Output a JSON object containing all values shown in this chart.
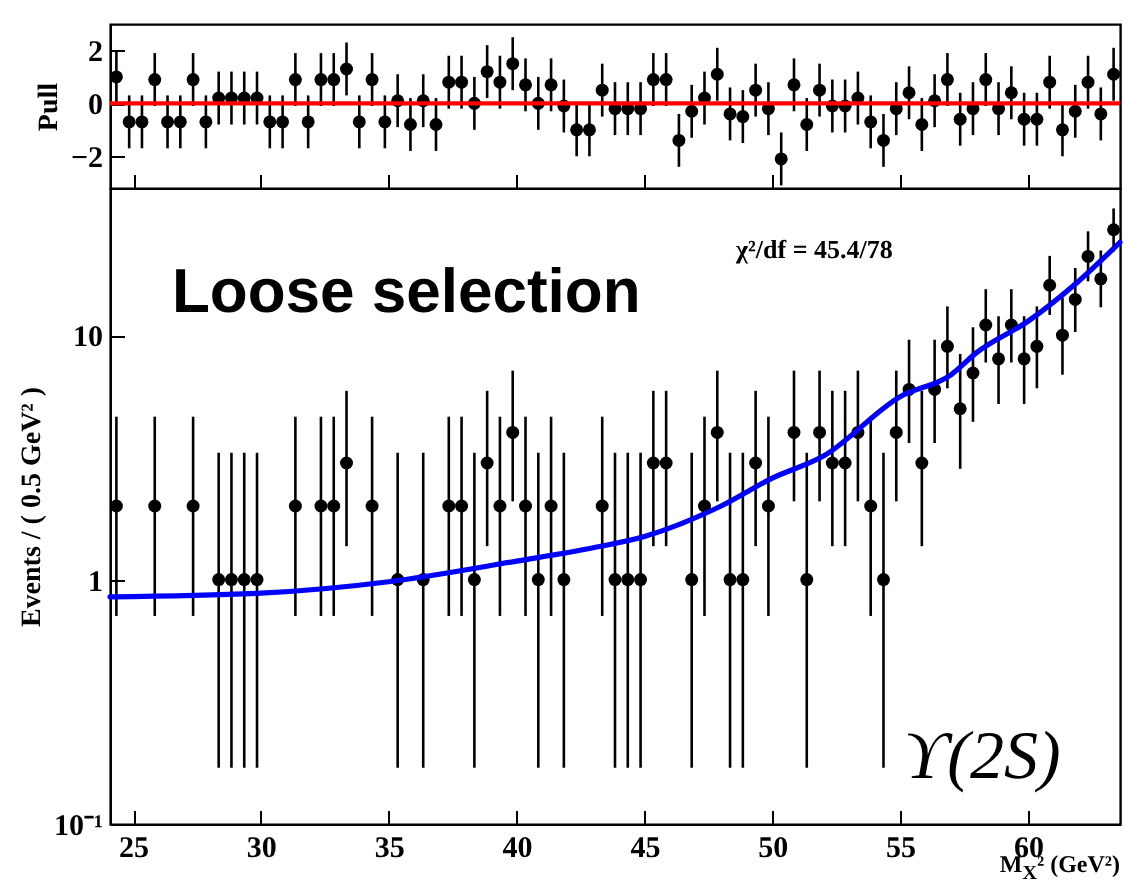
{
  "chart_data": [
    {
      "type": "scatter",
      "ylabel": "Pull",
      "marker": "circle",
      "tick_labels": "y",
      "xlim": [
        24.1,
        63.6
      ],
      "xticks": [
        25,
        30,
        35,
        40,
        45,
        50,
        55,
        60
      ],
      "ylim": [
        -3.2,
        3
      ],
      "yticks": [
        -2,
        0,
        2
      ],
      "ref_lines": [
        {
          "axis": "y",
          "value": 0,
          "color": "#ff0000"
        }
      ],
      "x": [
        24.35,
        24.85,
        25.35,
        25.85,
        26.35,
        26.85,
        27.35,
        27.85,
        28.35,
        28.85,
        29.35,
        29.85,
        30.35,
        30.85,
        31.35,
        31.85,
        32.35,
        32.85,
        33.35,
        33.85,
        34.35,
        34.85,
        35.35,
        35.85,
        36.35,
        36.85,
        37.35,
        37.85,
        38.35,
        38.85,
        39.35,
        39.85,
        40.35,
        40.85,
        41.35,
        41.85,
        42.35,
        42.85,
        43.35,
        43.85,
        44.35,
        44.85,
        45.35,
        45.85,
        46.35,
        46.85,
        47.35,
        47.85,
        48.35,
        48.85,
        49.35,
        49.85,
        50.35,
        50.85,
        51.35,
        51.85,
        52.35,
        52.85,
        53.35,
        53.85,
        54.35,
        54.85,
        55.35,
        55.85,
        56.35,
        56.85,
        57.35,
        57.85,
        58.35,
        58.85,
        59.35,
        59.85,
        60.35,
        60.85,
        61.35,
        61.85,
        62.35,
        62.85,
        63.35
      ],
      "series": [
        {
          "color": "#000000",
          "values": [
            1.0,
            -0.7,
            -0.7,
            0.9,
            -0.7,
            -0.7,
            0.9,
            -0.7,
            0.2,
            0.2,
            0.2,
            0.2,
            -0.7,
            -0.7,
            0.9,
            -0.7,
            0.9,
            0.9,
            1.3,
            -0.7,
            0.9,
            -0.7,
            0.1,
            -0.8,
            0.1,
            -0.8,
            0.8,
            0.8,
            0.0,
            1.2,
            0.8,
            1.5,
            0.7,
            0.0,
            0.7,
            -0.1,
            -1.0,
            -1.0,
            0.5,
            -0.2,
            -0.2,
            -0.2,
            0.9,
            0.9,
            -1.4,
            -0.3,
            0.2,
            1.1,
            -0.4,
            -0.5,
            0.5,
            -0.2,
            -2.1,
            0.7,
            -0.8,
            0.5,
            -0.1,
            -0.1,
            0.2,
            -0.7,
            -1.4,
            -0.2,
            0.4,
            -0.8,
            0.1,
            0.9,
            -0.6,
            -0.2,
            0.9,
            -0.2,
            0.4,
            -0.6,
            -0.6,
            0.8,
            -1.0,
            -0.3,
            0.8,
            -0.4,
            1.1
          ],
          "errors": [
            1,
            1,
            1,
            1,
            1,
            1,
            1,
            1,
            1,
            1,
            1,
            1,
            1,
            1,
            1,
            1,
            1,
            1,
            1,
            1,
            1,
            1,
            1,
            1,
            1,
            1,
            1,
            1,
            1,
            1,
            1,
            1,
            1,
            1,
            1,
            1,
            1,
            1,
            1,
            1,
            1,
            1,
            1,
            1,
            1,
            1,
            1,
            1,
            1,
            1,
            1,
            1,
            1,
            1,
            1,
            1,
            1,
            1,
            1,
            1,
            1,
            1,
            1,
            1,
            1,
            1,
            1,
            1,
            1,
            1,
            1,
            1,
            1,
            1,
            1,
            1,
            1,
            1,
            1
          ]
        }
      ]
    },
    {
      "type": "scatter",
      "ylabel": "Events / ( 0.5 GeV² )",
      "xlabel": "M$_{X}$² (GeV²)",
      "log": true,
      "xlim": [
        24.1,
        63.6
      ],
      "xticks": [
        25,
        30,
        35,
        40,
        45,
        50,
        55,
        60
      ],
      "ylim": [
        0.1,
        40
      ],
      "yticks": [
        {
          "value": 0.1,
          "label": "10⁻¹"
        },
        1,
        10
      ],
      "annotations": [
        "Loose selection",
        "χ²/df = 45.4/78",
        "ϒ(2S)"
      ],
      "series": [
        {
          "type": "scatter",
          "marker": "circle",
          "color": "#000000",
          "x": [
            24.35,
            25.85,
            27.35,
            28.35,
            28.85,
            29.35,
            29.85,
            31.35,
            32.35,
            32.85,
            33.35,
            34.35,
            35.35,
            36.35,
            37.35,
            37.85,
            38.35,
            38.85,
            39.35,
            39.85,
            40.35,
            40.85,
            41.35,
            41.85,
            43.35,
            43.85,
            44.35,
            44.85,
            45.35,
            45.85,
            46.85,
            47.35,
            47.85,
            48.35,
            48.85,
            49.35,
            49.85,
            50.85,
            51.35,
            51.85,
            52.35,
            52.85,
            53.35,
            53.85,
            54.35,
            54.85,
            55.35,
            55.85,
            56.35,
            56.85,
            57.35,
            57.85,
            58.35,
            58.85,
            59.35,
            59.85,
            60.35,
            60.85,
            61.35,
            61.85,
            62.35,
            62.85,
            63.35
          ],
          "values": [
            2,
            2,
            2,
            1,
            1,
            1,
            1,
            2,
            2,
            2,
            3,
            2,
            1,
            1,
            2,
            2,
            1,
            3,
            2,
            4,
            2,
            1,
            2,
            1,
            2,
            1,
            1,
            1,
            3,
            3,
            1,
            2,
            4,
            1,
            1,
            3,
            2,
            4,
            1,
            4,
            3,
            3,
            4,
            2,
            1,
            4,
            6,
            3,
            6,
            9,
            5,
            7,
            11,
            8,
            11,
            8,
            9,
            16,
            10,
            14,
            21,
            17,
            27
          ],
          "errors": [
            [
              0.71,
              4.64
            ],
            [
              0.71,
              4.64
            ],
            [
              0.71,
              4.64
            ],
            [
              0.17,
              3.3
            ],
            [
              0.17,
              3.3
            ],
            [
              0.17,
              3.3
            ],
            [
              0.17,
              3.3
            ],
            [
              0.71,
              4.64
            ],
            [
              0.71,
              4.64
            ],
            [
              0.71,
              4.64
            ],
            [
              1.37,
              5.92
            ],
            [
              0.71,
              4.64
            ],
            [
              0.17,
              3.3
            ],
            [
              0.17,
              3.3
            ],
            [
              0.71,
              4.64
            ],
            [
              0.71,
              4.64
            ],
            [
              0.17,
              3.3
            ],
            [
              1.37,
              5.92
            ],
            [
              0.71,
              4.64
            ],
            [
              2.09,
              7.16
            ],
            [
              0.71,
              4.64
            ],
            [
              0.17,
              3.3
            ],
            [
              0.71,
              4.64
            ],
            [
              0.17,
              3.3
            ],
            [
              0.71,
              4.64
            ],
            [
              0.17,
              3.3
            ],
            [
              0.17,
              3.3
            ],
            [
              0.17,
              3.3
            ],
            [
              1.37,
              5.92
            ],
            [
              1.37,
              5.92
            ],
            [
              0.17,
              3.3
            ],
            [
              0.71,
              4.64
            ],
            [
              2.09,
              7.16
            ],
            [
              0.17,
              3.3
            ],
            [
              0.17,
              3.3
            ],
            [
              1.37,
              5.92
            ],
            [
              0.71,
              4.64
            ],
            [
              2.09,
              7.16
            ],
            [
              0.17,
              3.3
            ],
            [
              2.09,
              7.16
            ],
            [
              1.37,
              5.92
            ],
            [
              1.37,
              5.92
            ],
            [
              2.09,
              7.16
            ],
            [
              0.71,
              4.64
            ],
            [
              0.17,
              3.3
            ],
            [
              2.09,
              7.16
            ],
            [
              3.62,
              9.58
            ],
            [
              1.37,
              5.92
            ],
            [
              3.62,
              9.58
            ],
            [
              6.06,
              13.11
            ],
            [
              2.84,
              8.38
            ],
            [
              4.42,
              10.77
            ],
            [
              7.73,
              15.42
            ],
            [
              5.23,
              11.95
            ],
            [
              7.73,
              15.42
            ],
            [
              5.23,
              11.95
            ],
            [
              6.06,
              13.11
            ],
            [
              12.1,
              21.1
            ],
            [
              6.89,
              14.27
            ],
            [
              10.3,
              18.83
            ],
            [
              16.6,
              26.6
            ],
            [
              13,
              22.2
            ],
            [
              22,
              33
            ]
          ]
        },
        {
          "type": "line",
          "color": "#0000ff",
          "x": [
            24.1,
            30,
            35,
            40,
            43,
            45,
            48,
            50,
            52,
            55,
            57,
            58,
            60,
            62,
            63.6
          ],
          "values": [
            0.85,
            0.88,
            0.98,
            1.19,
            1.35,
            1.5,
            2.0,
            2.6,
            3.2,
            5.6,
            6.9,
            8.5,
            11.4,
            16.7,
            24
          ]
        }
      ]
    }
  ]
}
